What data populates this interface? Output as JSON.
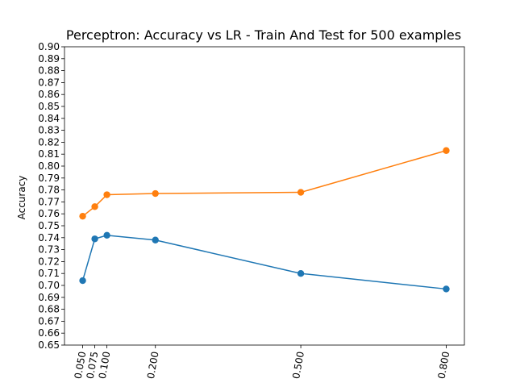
{
  "chart_data": {
    "type": "line",
    "title": "Perceptron: Accuracy vs LR - Train And Test for 500 examples",
    "xlabel": "",
    "ylabel": "Accuracy",
    "x": [
      0.05,
      0.075,
      0.1,
      0.2,
      0.5,
      0.8
    ],
    "xticks": [
      "0.050",
      "0.075",
      "0.100",
      "0.200",
      "0.500",
      "0.800"
    ],
    "xlim": [
      0.0125,
      0.8375
    ],
    "ylim": [
      0.65,
      0.9
    ],
    "yticks": [
      "0.65",
      "0.66",
      "0.67",
      "0.68",
      "0.69",
      "0.70",
      "0.71",
      "0.72",
      "0.73",
      "0.74",
      "0.75",
      "0.76",
      "0.77",
      "0.78",
      "0.79",
      "0.80",
      "0.81",
      "0.82",
      "0.83",
      "0.84",
      "0.85",
      "0.86",
      "0.87",
      "0.88",
      "0.89",
      "0.90"
    ],
    "grid": false,
    "series": [
      {
        "values": [
          0.704,
          0.739,
          0.742,
          0.738,
          0.71,
          0.697
        ],
        "color": "#1f77b4"
      },
      {
        "values": [
          0.758,
          0.766,
          0.776,
          0.777,
          0.778,
          0.813
        ],
        "color": "#ff7f0e"
      }
    ]
  }
}
